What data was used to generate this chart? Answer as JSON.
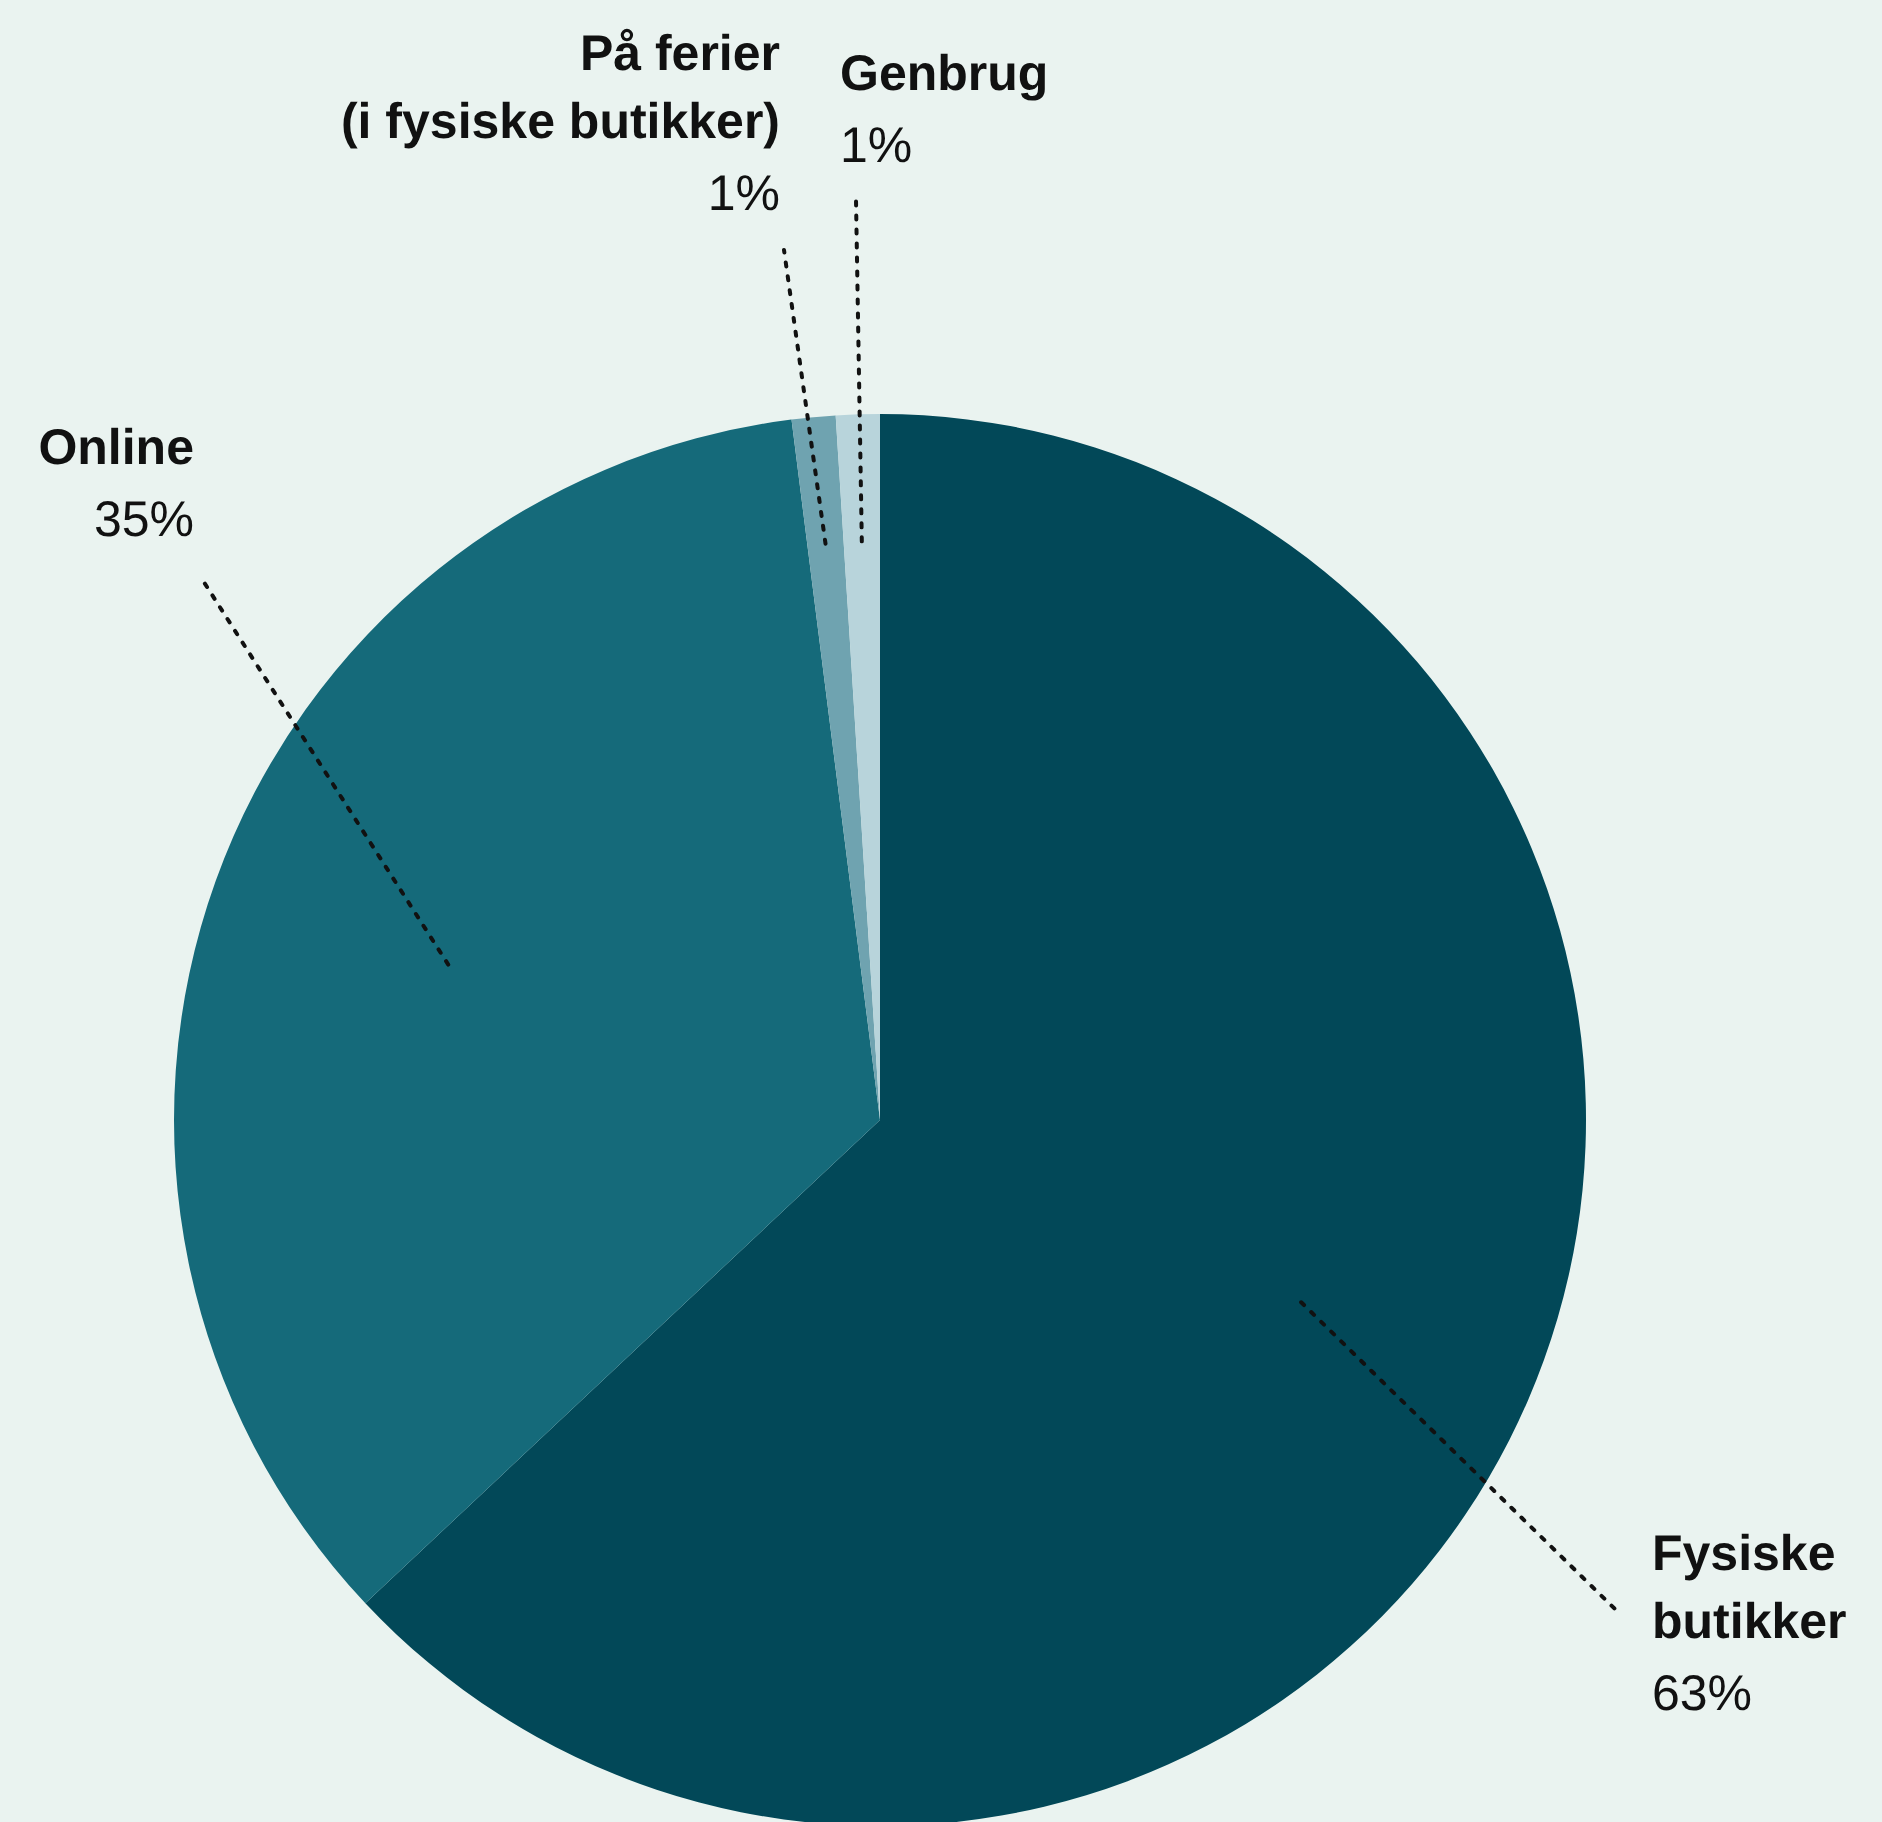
{
  "chart_data": {
    "type": "pie",
    "categories": [
      "Fysiske butikker",
      "Online",
      "På ferier (i fysiske butikker)",
      "Genbrug"
    ],
    "values": [
      63,
      35,
      1,
      1
    ],
    "colors": [
      "#024858",
      "#156a7a",
      "#6fa3b0",
      "#b8d4db"
    ],
    "data_labels": true,
    "value_labels": [
      "63%",
      "35%",
      "1%",
      "1%"
    ]
  }
}
